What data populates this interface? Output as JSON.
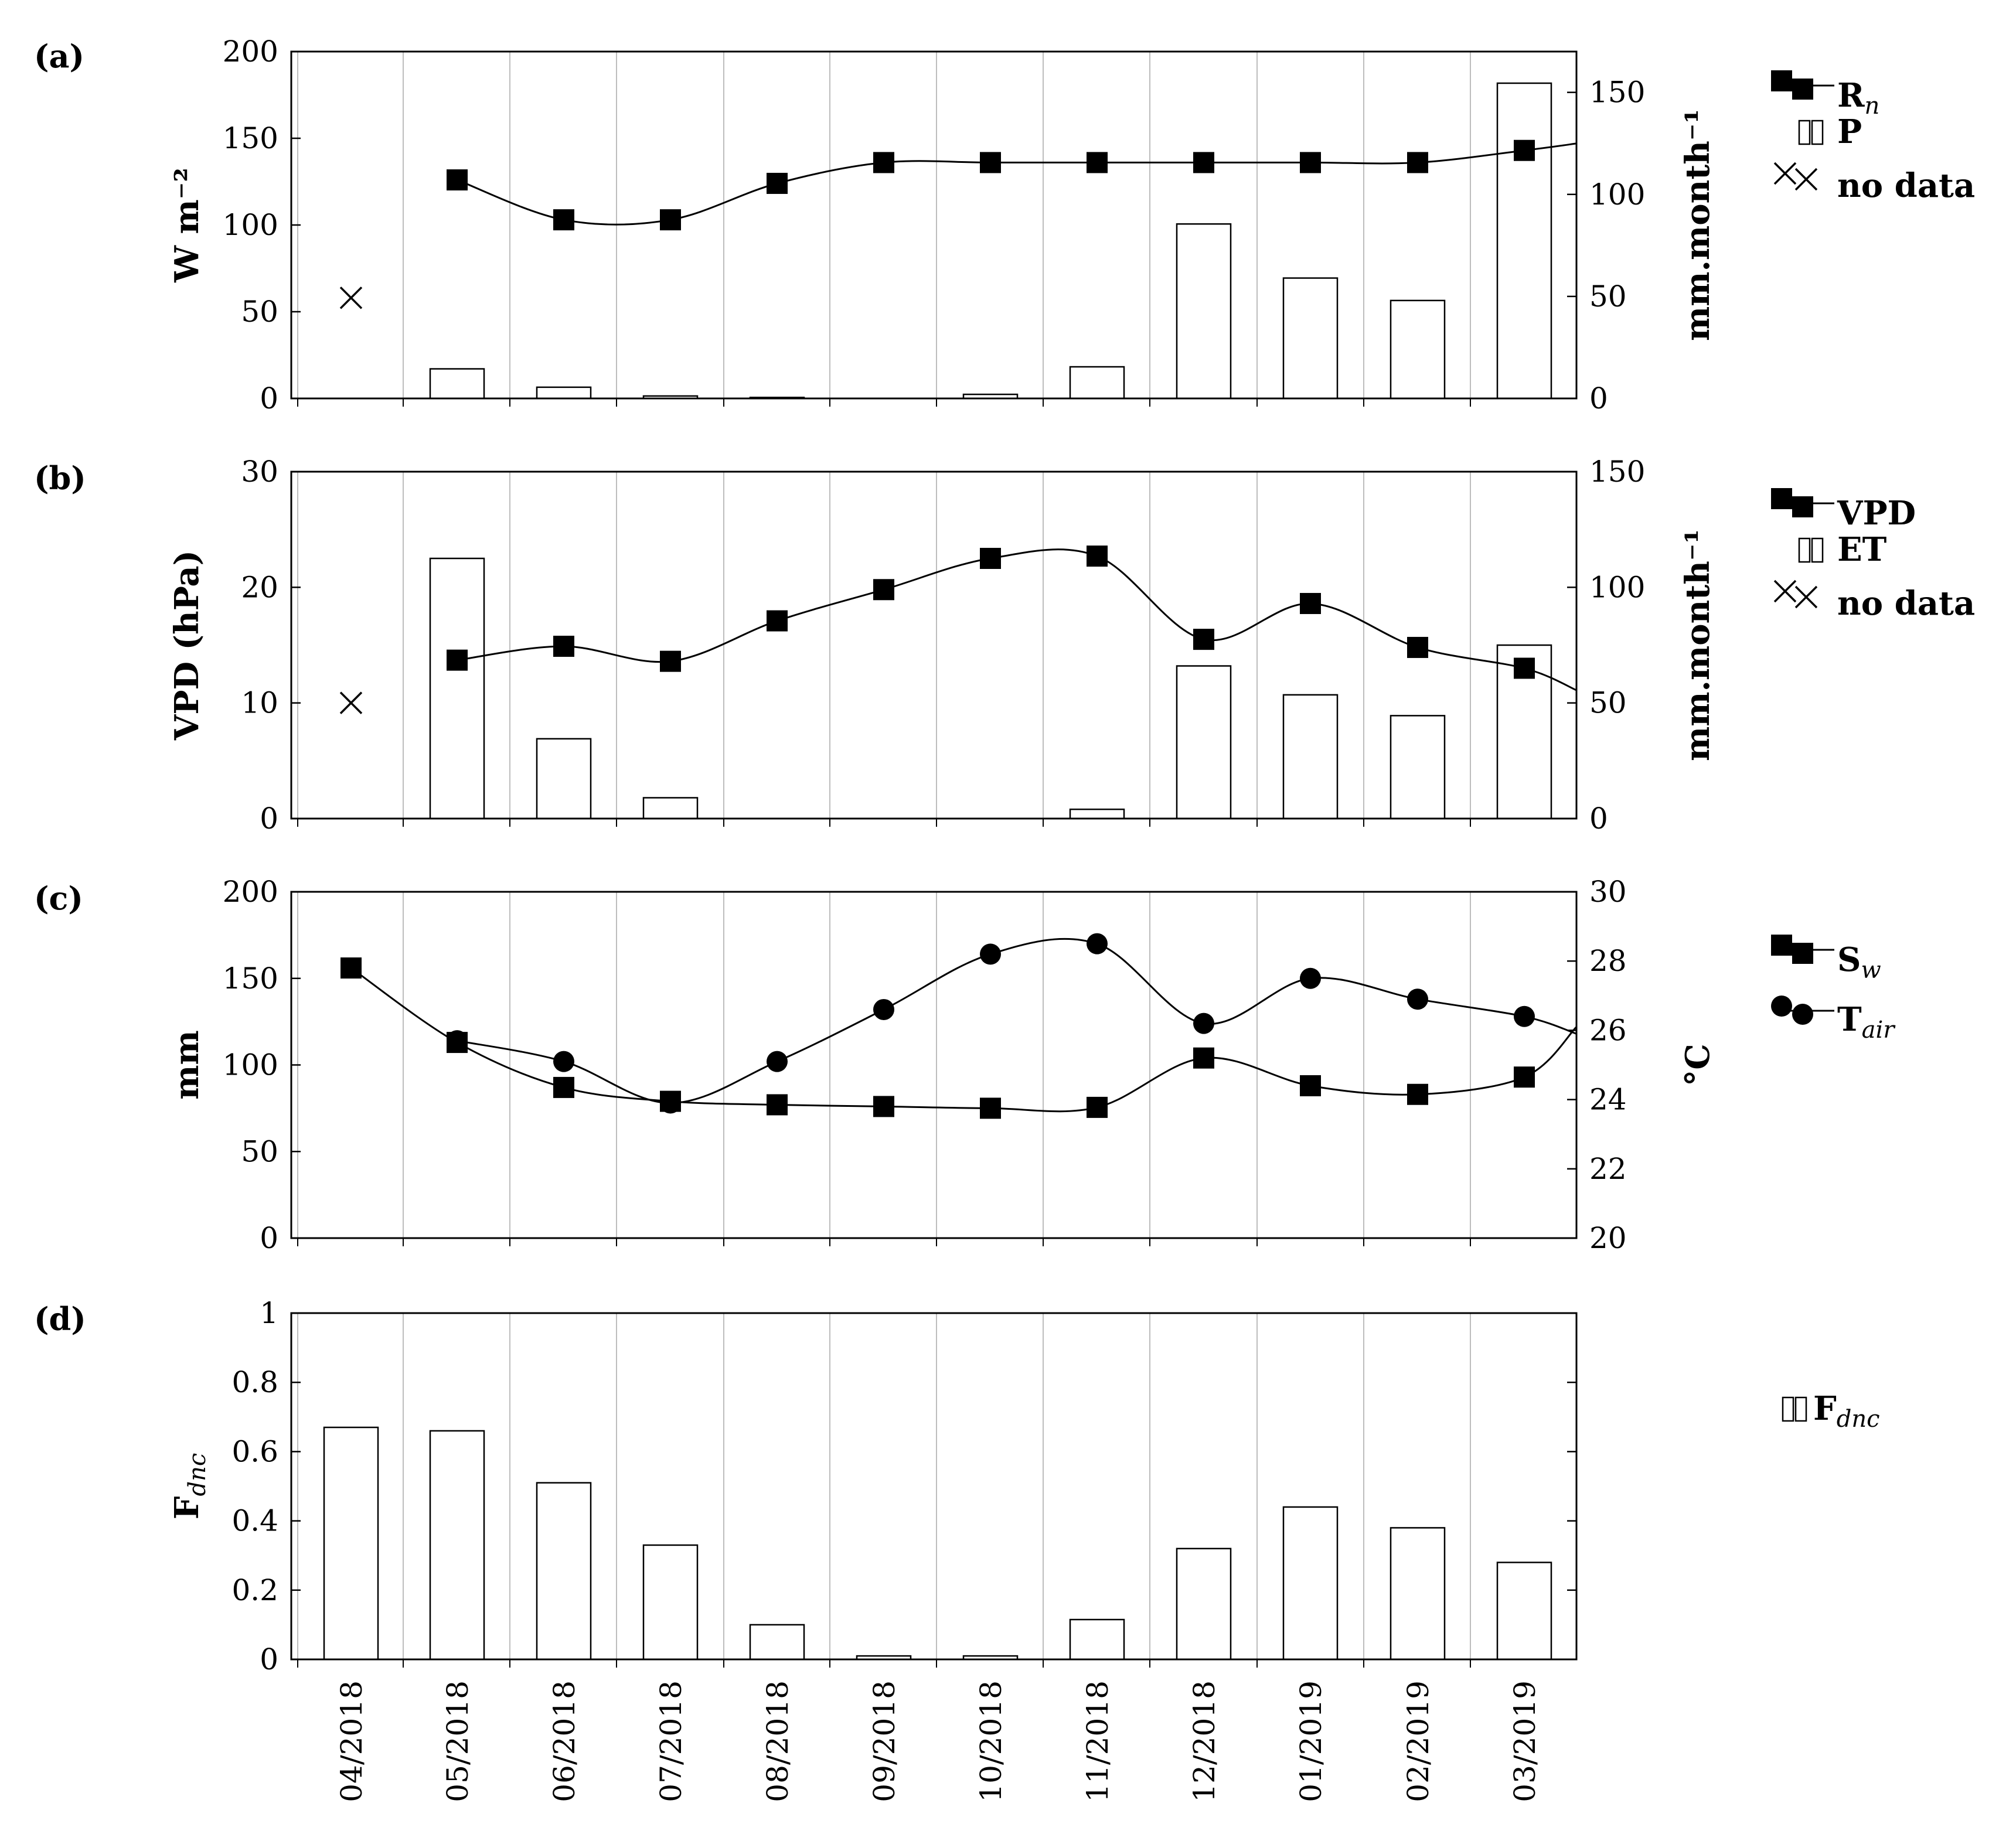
{
  "chart_data": [
    {
      "panel": "(a)",
      "type": "bar+line",
      "categories": [
        "04/2018",
        "05/2018",
        "06/2018",
        "07/2018",
        "08/2018",
        "09/2018",
        "10/2018",
        "11/2018",
        "12/2018",
        "01/2019",
        "02/2019",
        "03/2019"
      ],
      "left_axis": {
        "label": "W m⁻²",
        "ylim": [
          0,
          200
        ],
        "ticks": [
          "0",
          "50",
          "100",
          "150",
          "200"
        ]
      },
      "right_axis": {
        "label": "mm.month⁻¹",
        "ylim": [
          0,
          170
        ],
        "ticks": [
          "0",
          "50",
          "100",
          "150"
        ]
      },
      "series": [
        {
          "name": "Rn",
          "axis": "left",
          "kind": "line-square",
          "values": [
            null,
            126,
            103,
            103,
            124,
            136,
            136,
            136,
            136,
            136,
            136,
            143
          ]
        },
        {
          "name": "P",
          "axis": "right",
          "kind": "bar",
          "values": [
            0,
            14.5,
            5.5,
            1.2,
            0.5,
            0,
            2,
            15.5,
            85.5,
            59,
            48,
            154.5
          ]
        },
        {
          "name": "no data",
          "axis": "left",
          "kind": "cross",
          "values": [
            58,
            null,
            null,
            null,
            null,
            null,
            null,
            null,
            null,
            null,
            null,
            null
          ]
        }
      ],
      "line_end_value": 147,
      "legend": [
        "R",
        "n",
        "P",
        "no data"
      ]
    },
    {
      "panel": "(b)",
      "type": "bar+line",
      "categories": [
        "04/2018",
        "05/2018",
        "06/2018",
        "07/2018",
        "08/2018",
        "09/2018",
        "10/2018",
        "11/2018",
        "12/2018",
        "01/2019",
        "02/2019",
        "03/2019"
      ],
      "left_axis": {
        "label": "VPD (hPa)",
        "ylim": [
          0,
          30
        ],
        "ticks": [
          "0",
          "10",
          "20",
          "30"
        ]
      },
      "right_axis": {
        "label": "mm.month⁻¹",
        "ylim": [
          0,
          150
        ],
        "ticks": [
          "0",
          "50",
          "100",
          "150"
        ]
      },
      "series": [
        {
          "name": "VPD",
          "axis": "left",
          "kind": "line-square",
          "values": [
            null,
            13.7,
            14.9,
            13.6,
            17.1,
            19.8,
            22.5,
            22.7,
            15.5,
            18.6,
            14.8,
            13
          ]
        },
        {
          "name": "ET",
          "axis": "right",
          "kind": "bar",
          "values": [
            0,
            112.5,
            34.5,
            9,
            0,
            0,
            0,
            4,
            66,
            53.5,
            44.5,
            75
          ]
        },
        {
          "name": "no data",
          "axis": "left",
          "kind": "cross",
          "values": [
            10,
            null,
            null,
            null,
            null,
            null,
            null,
            null,
            null,
            null,
            null,
            null
          ]
        }
      ],
      "line_end_value": 11.1,
      "legend": [
        "VPD",
        "ET",
        "no data"
      ]
    },
    {
      "panel": "(c)",
      "type": "line",
      "categories": [
        "04/2018",
        "05/2018",
        "06/2018",
        "07/2018",
        "08/2018",
        "09/2018",
        "10/2018",
        "11/2018",
        "12/2018",
        "01/2019",
        "02/2019",
        "03/2019"
      ],
      "left_axis": {
        "label": "mm",
        "ylim": [
          0,
          200
        ],
        "ticks": [
          "0",
          "50",
          "100",
          "150",
          "200"
        ]
      },
      "right_axis": {
        "label": "°C",
        "ylim": [
          20,
          30
        ],
        "ticks": [
          "20",
          "22",
          "24",
          "26",
          "28",
          "30"
        ]
      },
      "series": [
        {
          "name": "Sw",
          "axis": "left",
          "kind": "line-square",
          "values": [
            156,
            113,
            87,
            79,
            77,
            76,
            75,
            75.5,
            104,
            88,
            83,
            93
          ],
          "end_value": 122
        },
        {
          "name": "Tair",
          "axis": "right",
          "kind": "line-circle",
          "values": [
            null,
            25.7,
            25.1,
            23.9,
            25.1,
            26.6,
            28.2,
            28.5,
            26.2,
            27.5,
            26.9,
            26.4
          ],
          "end_value": 25.9
        }
      ],
      "legend": [
        "S",
        "w",
        "T",
        "air"
      ]
    },
    {
      "panel": "(d)",
      "type": "bar",
      "categories": [
        "04/2018",
        "05/2018",
        "06/2018",
        "07/2018",
        "08/2018",
        "09/2018",
        "10/2018",
        "11/2018",
        "12/2018",
        "01/2019",
        "02/2019",
        "03/2019"
      ],
      "left_axis": {
        "label": "F",
        "label_sub": "dnc",
        "ylim": [
          0,
          1
        ],
        "ticks": [
          "0",
          "0.2",
          "0.4",
          "0.6",
          "0.8",
          "1"
        ]
      },
      "series": [
        {
          "name": "Fdnc",
          "axis": "left",
          "kind": "bar",
          "values": [
            0.67,
            0.66,
            0.51,
            0.33,
            0.1,
            0.01,
            0.01,
            0.115,
            0.32,
            0.44,
            0.38,
            0.28
          ]
        }
      ],
      "legend": [
        "F",
        "dnc"
      ]
    }
  ]
}
